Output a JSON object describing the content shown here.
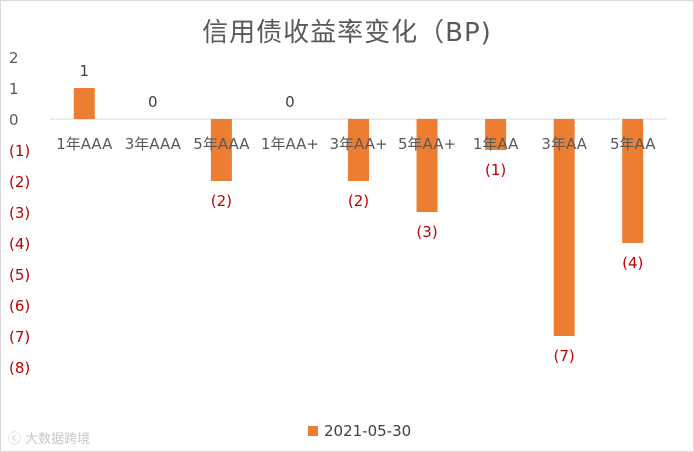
{
  "chart_data": {
    "type": "bar",
    "title": "信用债收益率变化（BP)",
    "categories": [
      "1年AAA",
      "3年AAA",
      "5年AAA",
      "1年AA+",
      "3年AA+",
      "5年AA+",
      "1年AA",
      "3年AA",
      "5年AA"
    ],
    "series": [
      {
        "name": "2021-05-30",
        "values": [
          1,
          0,
          -2,
          0,
          -2,
          -3,
          -1,
          -7,
          -4
        ],
        "value_labels": [
          "1",
          "0",
          "(2)",
          "0",
          "(2)",
          "(3)",
          "(1)",
          "(7)",
          "(4)"
        ]
      }
    ],
    "y_ticks": [
      2,
      1,
      0,
      -1,
      -2,
      -3,
      -4,
      -5,
      -6,
      -7,
      -8
    ],
    "y_tick_labels": [
      "2",
      "1",
      "0",
      "(1)",
      "(2)",
      "(3)",
      "(4)",
      "(5)",
      "(6)",
      "(7)",
      "(8)"
    ],
    "ylim": [
      -8,
      2
    ],
    "grid": false,
    "legend_position": "bottom",
    "colors": {
      "bar": "#ed7d31",
      "negative_label": "#c00000",
      "positive_label": "#404040",
      "axis_label": "#595959"
    }
  },
  "watermark": "大数据跨境"
}
